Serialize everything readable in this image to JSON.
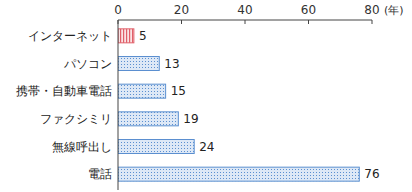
{
  "chart_data": {
    "type": "bar",
    "orientation": "horizontal",
    "categories": [
      "インターネット",
      "パソコン",
      "携帯・自動車電話",
      "ファクシミリ",
      "無線呼出し",
      "電話"
    ],
    "values": [
      5,
      13,
      15,
      19,
      24,
      76
    ],
    "colors": [
      "#e0606a",
      "#5b8fd0",
      "#5b8fd0",
      "#5b8fd0",
      "#5b8fd0",
      "#5b8fd0"
    ],
    "xlim": [
      0,
      80
    ],
    "xticks": [
      0,
      20,
      40,
      60,
      80
    ],
    "x_label": "(年)",
    "data_labels": true,
    "grid": false
  }
}
